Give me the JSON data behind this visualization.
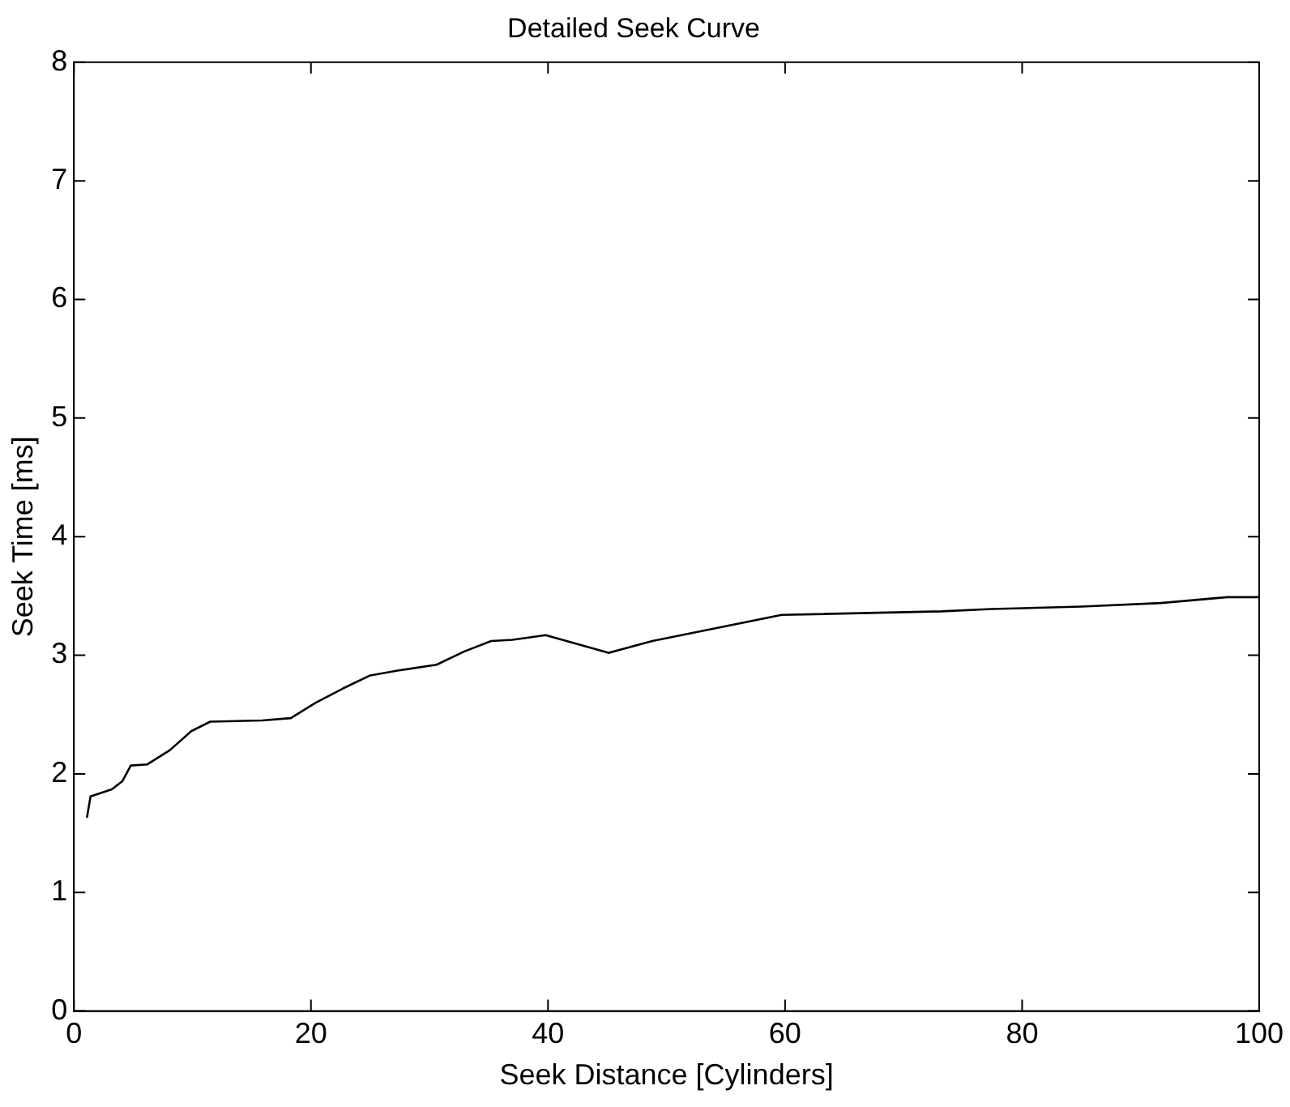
{
  "chart_data": {
    "type": "line",
    "title": "Detailed Seek Curve",
    "xlabel": "Seek Distance [Cylinders]",
    "ylabel": "Seek Time [ms]",
    "series": [
      {
        "color": "#000000",
        "x": [
          1.1,
          1.4,
          3.2,
          4.1,
          4.8,
          6.2,
          8.1,
          9.9,
          11.5,
          15.9,
          18.3,
          20.4,
          22.7,
          25.0,
          27.3,
          30.6,
          32.9,
          35.2,
          37.0,
          39.8,
          45.1,
          48.8,
          59.7,
          73.2,
          77.4,
          85.0,
          91.7,
          97.3,
          100
        ],
        "values": [
          1.63,
          1.81,
          1.87,
          1.94,
          2.07,
          2.08,
          2.2,
          2.36,
          2.44,
          2.45,
          2.47,
          2.6,
          2.72,
          2.83,
          2.87,
          2.92,
          3.03,
          3.12,
          3.13,
          3.17,
          3.02,
          3.12,
          3.34,
          3.37,
          3.39,
          3.41,
          3.44,
          3.49,
          3.49
        ]
      }
    ],
    "xlim": [
      0,
      100
    ],
    "xticks": [
      0,
      20,
      40,
      60,
      80,
      100
    ],
    "ylim": [
      0,
      8
    ],
    "yticks": [
      0,
      1,
      2,
      3,
      4,
      5,
      6,
      7,
      8
    ],
    "grid": false,
    "legend": false,
    "marker": "none",
    "line_style": "solid"
  }
}
